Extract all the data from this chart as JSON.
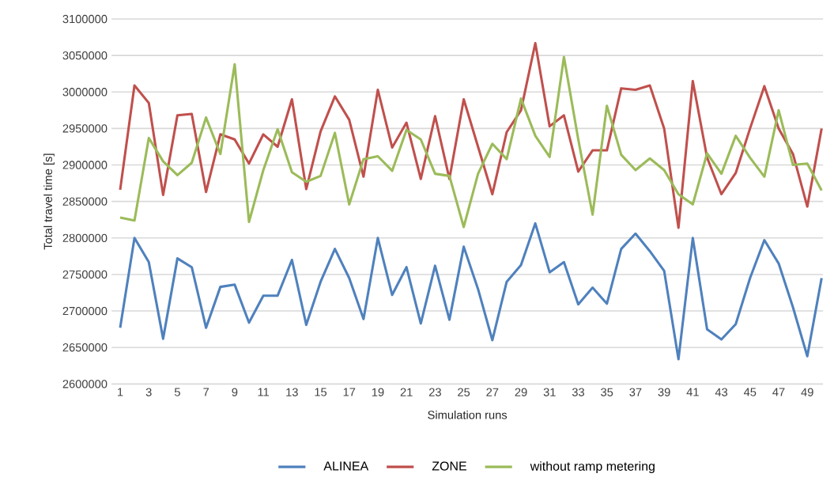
{
  "chart_data": {
    "type": "line",
    "xlabel": "Simulation runs",
    "ylabel": "Total travel time [s]",
    "categories": [
      "1",
      null,
      "3",
      null,
      "5",
      null,
      "7",
      null,
      "9",
      null,
      "11",
      null,
      "13",
      null,
      "15",
      null,
      "17",
      null,
      "19",
      null,
      "21",
      null,
      "23",
      null,
      "25",
      null,
      "27",
      null,
      "29",
      null,
      "31",
      null,
      "33",
      null,
      "35",
      null,
      "37",
      null,
      "39",
      null,
      "41",
      null,
      "43",
      null,
      "45",
      null,
      "47",
      null,
      "49",
      null
    ],
    "series": [
      {
        "name": "ALINEA",
        "color": "#4f81bd",
        "values": [
          2677000,
          2800000,
          2767000,
          2662000,
          2772000,
          2760000,
          2677000,
          2733000,
          2736000,
          2684000,
          2721000,
          2721000,
          2770000,
          2681000,
          2740000,
          2785000,
          2745000,
          2689000,
          2800000,
          2722000,
          2760000,
          2683000,
          2762000,
          2688000,
          2788000,
          2730000,
          2660000,
          2740000,
          2763000,
          2820000,
          2753000,
          2767000,
          2709000,
          2732000,
          2710000,
          2785000,
          2806000,
          2782000,
          2755000,
          2634000,
          2800000,
          2675000,
          2661000,
          2682000,
          2745000,
          2797000,
          2765000,
          2705000,
          2638000,
          2745000
        ]
      },
      {
        "name": "ZONE",
        "color": "#c0504d",
        "values": [
          2866000,
          3009000,
          2985000,
          2859000,
          2968000,
          2970000,
          2863000,
          2942000,
          2935000,
          2902000,
          2942000,
          2925000,
          2990000,
          2867000,
          2946000,
          2994000,
          2962000,
          2884000,
          3003000,
          2924000,
          2958000,
          2881000,
          2967000,
          2881000,
          2990000,
          2925000,
          2860000,
          2945000,
          2975000,
          3067000,
          2953000,
          2968000,
          2891000,
          2920000,
          2920000,
          3005000,
          3003000,
          3009000,
          2950000,
          2814000,
          3015000,
          2910000,
          2860000,
          2889000,
          2950000,
          3008000,
          2950000,
          2915000,
          2843000,
          2950000
        ]
      },
      {
        "name": "without ramp metering",
        "color": "#9bbb59",
        "values": [
          2828000,
          2824000,
          2937000,
          2905000,
          2886000,
          2903000,
          2965000,
          2915000,
          3038000,
          2822000,
          2893000,
          2949000,
          2890000,
          2877000,
          2885000,
          2944000,
          2846000,
          2908000,
          2912000,
          2892000,
          2948000,
          2935000,
          2888000,
          2885000,
          2815000,
          2888000,
          2929000,
          2908000,
          2991000,
          2940000,
          2911000,
          3048000,
          2935000,
          2832000,
          2981000,
          2914000,
          2893000,
          2909000,
          2893000,
          2860000,
          2846000,
          2916000,
          2888000,
          2940000,
          2910000,
          2884000,
          2975000,
          2900000,
          2902000,
          2865000
        ]
      }
    ],
    "ylim": [
      2600000,
      3100000
    ],
    "yticks": [
      2600000,
      2650000,
      2700000,
      2750000,
      2800000,
      2850000,
      2900000,
      2950000,
      3000000,
      3050000,
      3100000
    ],
    "grid": "y",
    "legend": "bottom",
    "line_style": "solid"
  }
}
